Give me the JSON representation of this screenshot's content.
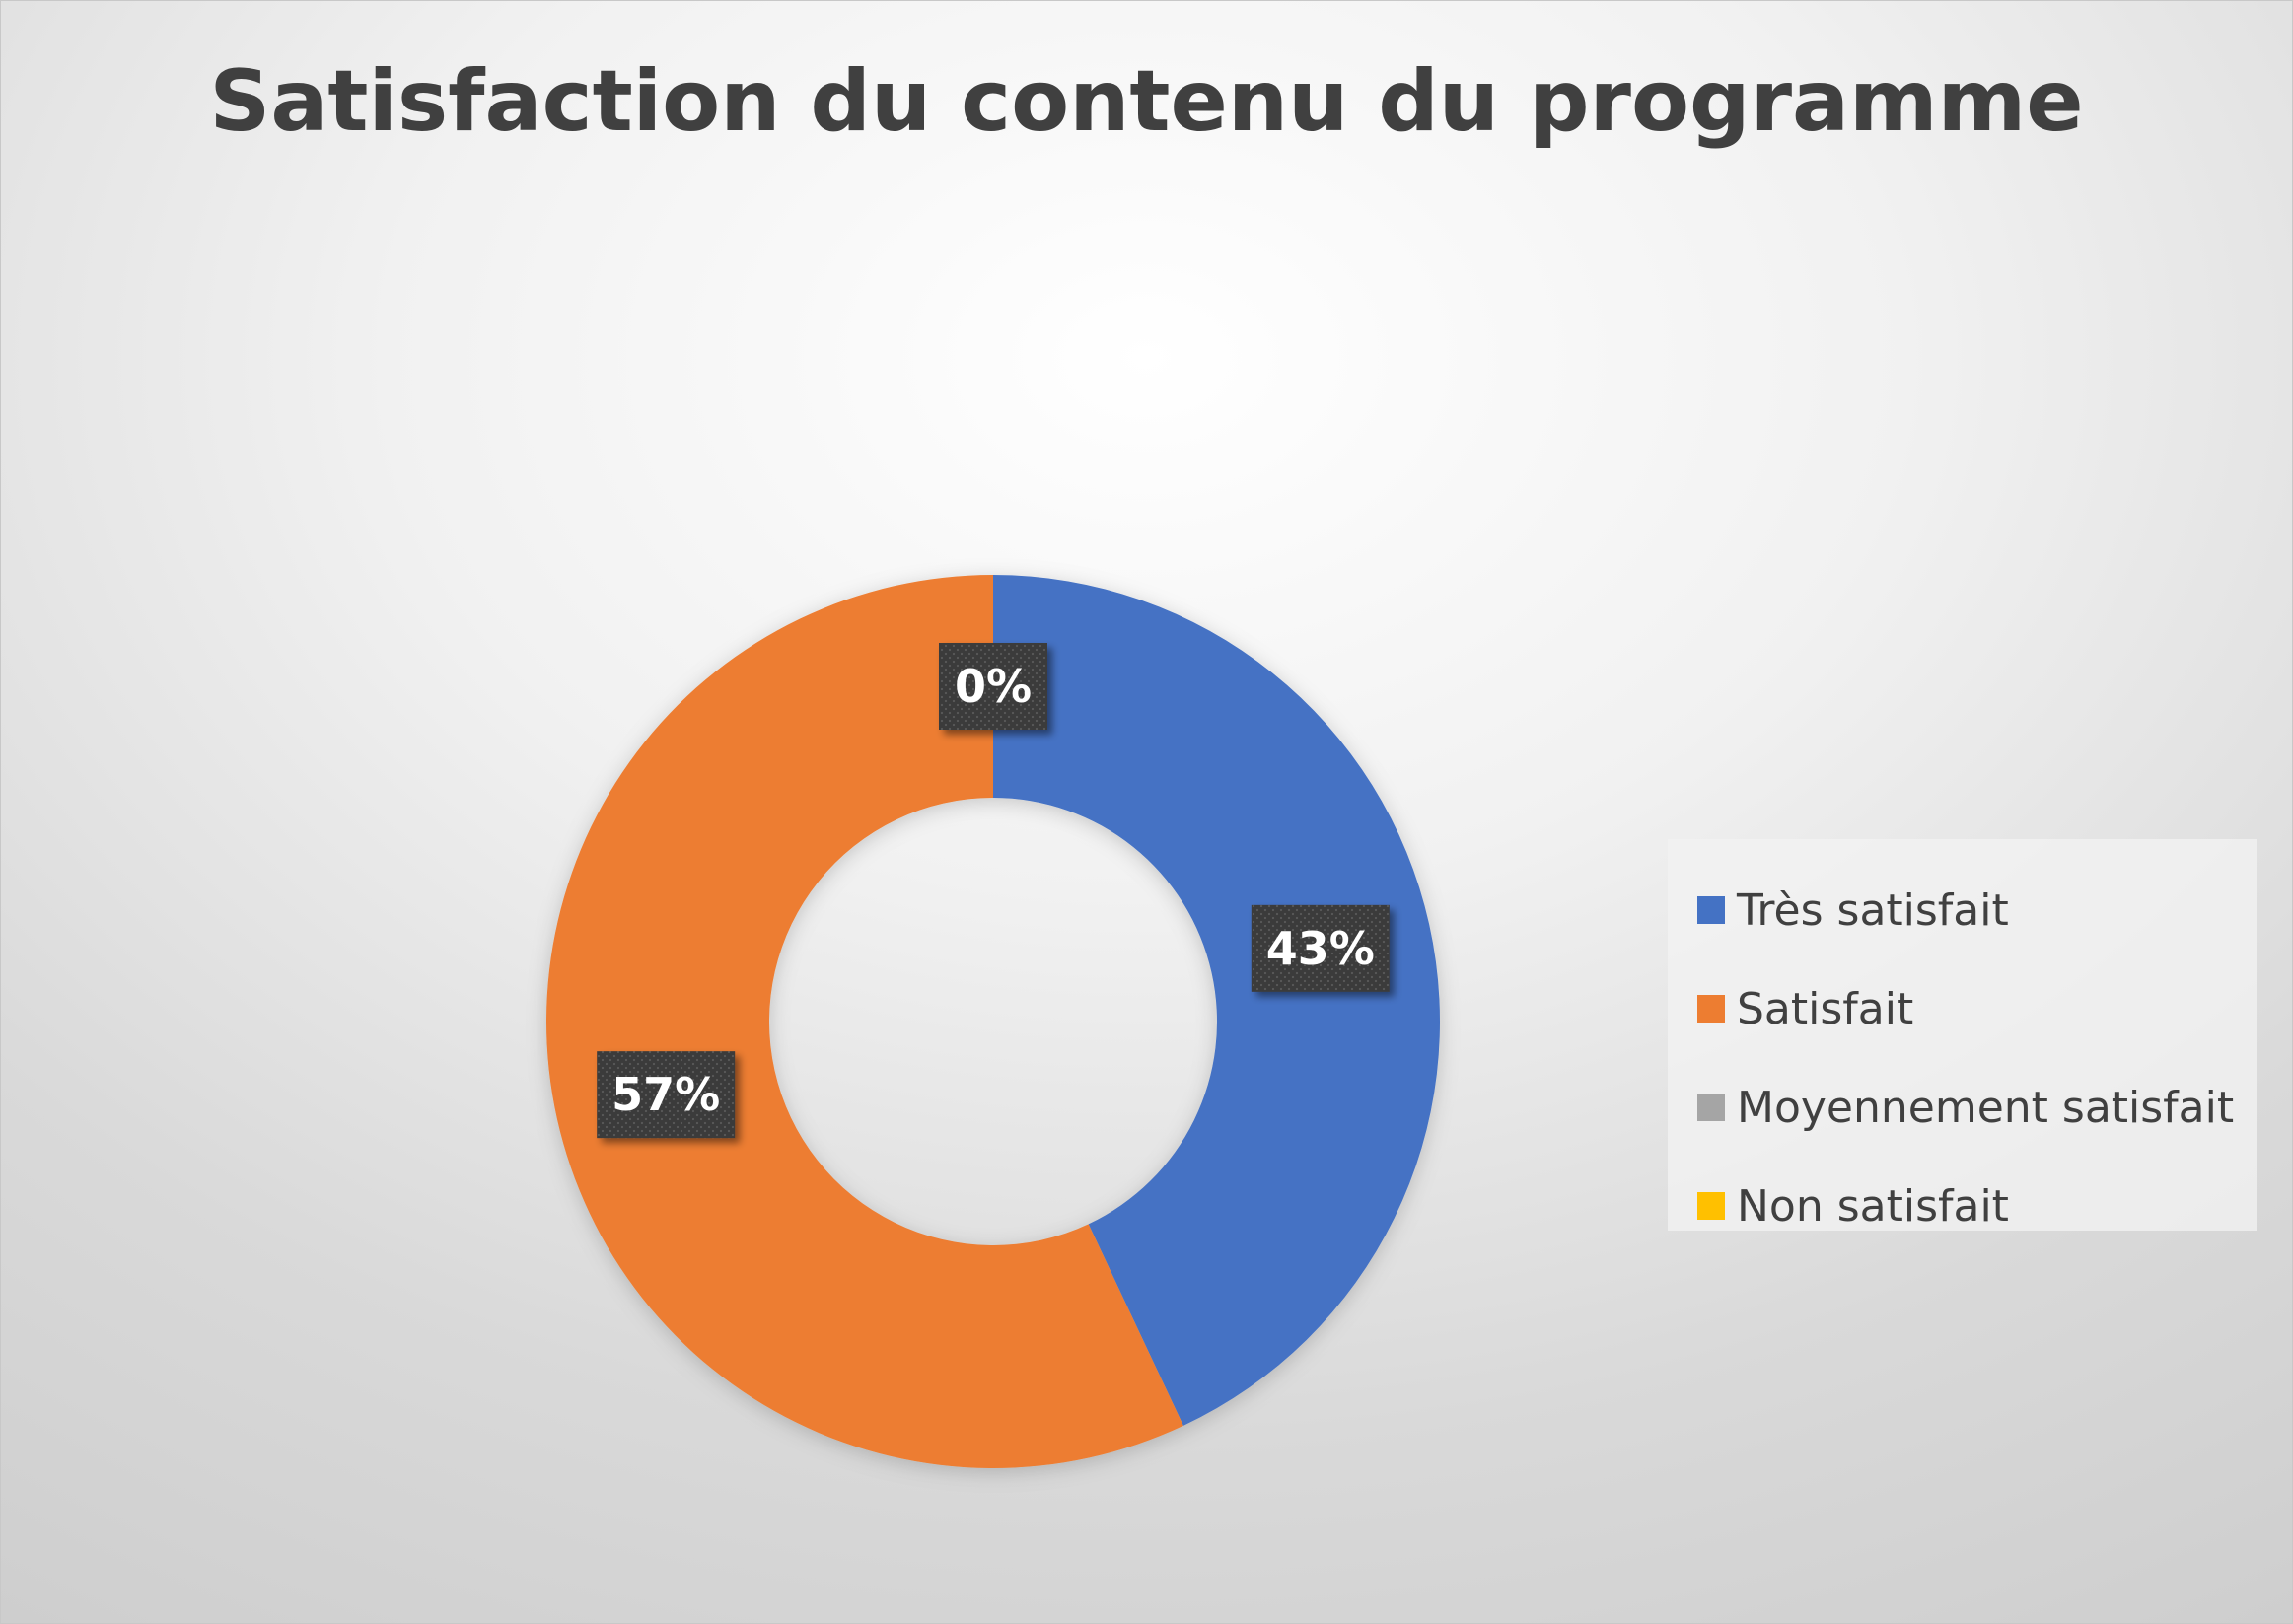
{
  "chart_data": {
    "type": "doughnut",
    "title": "Satisfaction du contenu du programme",
    "categories": [
      "Très satisfait",
      "Satisfait",
      "Moyennement satisfait",
      "Non satisfait"
    ],
    "values": [
      43,
      57,
      0,
      0
    ],
    "data_labels": [
      "43%",
      "57%",
      "0%",
      ""
    ],
    "colors": [
      "#4472C4",
      "#ED7D31",
      "#A5A5A5",
      "#FFC000"
    ],
    "legend_position": "right"
  }
}
